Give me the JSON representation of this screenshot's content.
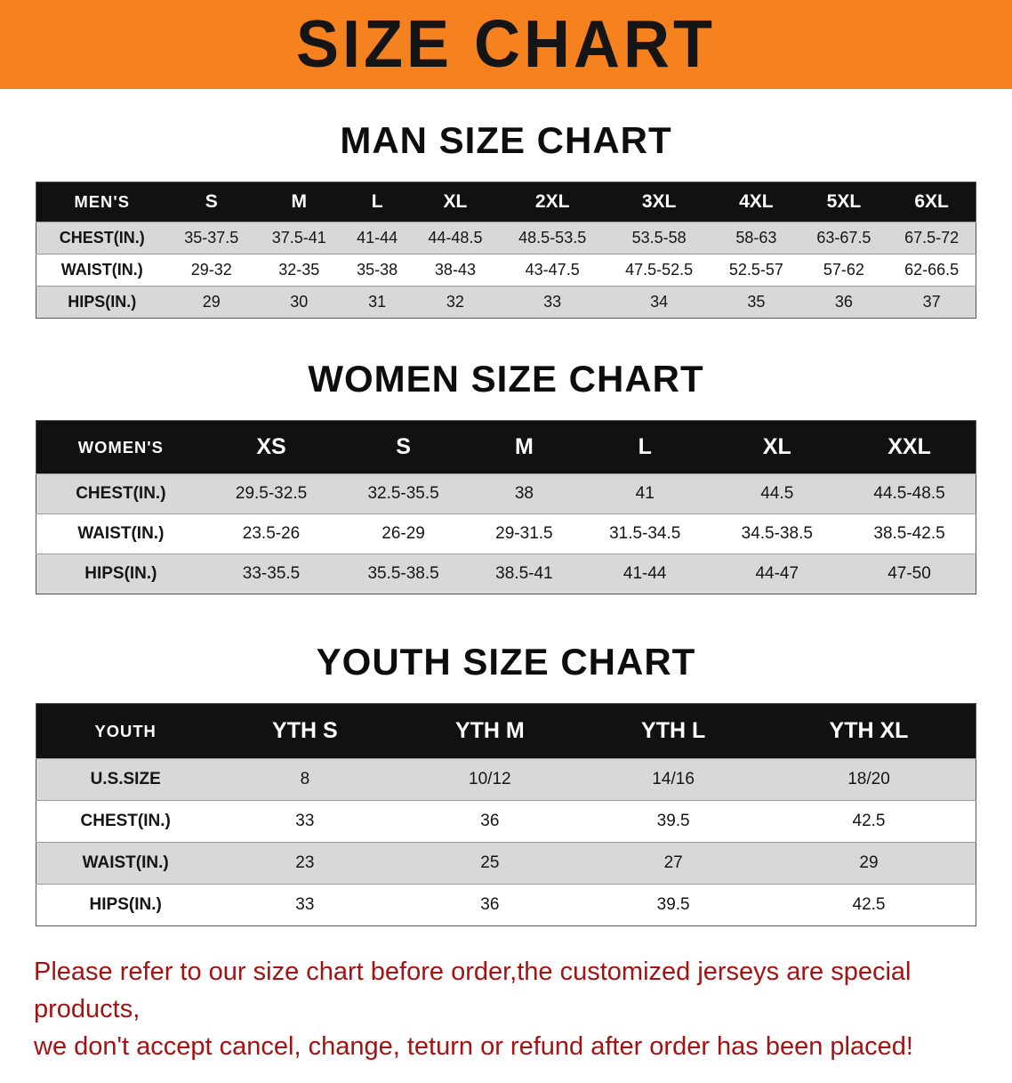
{
  "banner": {
    "title": "SIZE CHART"
  },
  "colors": {
    "banner_bg": "#f5821f",
    "table_header_bg": "#111111",
    "table_header_text": "#ffffff",
    "row_stripe": "#d8d8d8",
    "notice_text": "#a41212"
  },
  "sections": [
    {
      "heading": "MAN SIZE CHART",
      "table": {
        "header": [
          "MEN'S",
          "S",
          "M",
          "L",
          "XL",
          "2XL",
          "3XL",
          "4XL",
          "5XL",
          "6XL"
        ],
        "rows": [
          [
            "CHEST(IN.)",
            "35-37.5",
            "37.5-41",
            "41-44",
            "44-48.5",
            "48.5-53.5",
            "53.5-58",
            "58-63",
            "63-67.5",
            "67.5-72"
          ],
          [
            "WAIST(IN.)",
            "29-32",
            "32-35",
            "35-38",
            "38-43",
            "43-47.5",
            "47.5-52.5",
            "52.5-57",
            "57-62",
            "62-66.5"
          ],
          [
            "HIPS(IN.)",
            "29",
            "30",
            "31",
            "32",
            "33",
            "34",
            "35",
            "36",
            "37"
          ]
        ]
      }
    },
    {
      "heading": "WOMEN SIZE CHART",
      "table": {
        "header": [
          "WOMEN'S",
          "XS",
          "S",
          "M",
          "L",
          "XL",
          "XXL"
        ],
        "rows": [
          [
            "CHEST(IN.)",
            "29.5-32.5",
            "32.5-35.5",
            "38",
            "41",
            "44.5",
            "44.5-48.5"
          ],
          [
            "WAIST(IN.)",
            "23.5-26",
            "26-29",
            "29-31.5",
            "31.5-34.5",
            "34.5-38.5",
            "38.5-42.5"
          ],
          [
            "HIPS(IN.)",
            "33-35.5",
            "35.5-38.5",
            "38.5-41",
            "41-44",
            "44-47",
            "47-50"
          ]
        ]
      }
    },
    {
      "heading": "YOUTH SIZE CHART",
      "table": {
        "header": [
          "YOUTH",
          "YTH S",
          "YTH M",
          "YTH L",
          "YTH XL"
        ],
        "rows": [
          [
            "U.S.SIZE",
            "8",
            "10/12",
            "14/16",
            "18/20"
          ],
          [
            "CHEST(IN.)",
            "33",
            "36",
            "39.5",
            "42.5"
          ],
          [
            "WAIST(IN.)",
            "23",
            "25",
            "27",
            "29"
          ],
          [
            "HIPS(IN.)",
            "33",
            "36",
            "39.5",
            "42.5"
          ]
        ]
      }
    }
  ],
  "notice": {
    "lines": [
      "Please refer to our size chart before order,the customized jerseys are special products,",
      "we don't accept cancel, change, teturn or refund after order has been placed!"
    ]
  }
}
